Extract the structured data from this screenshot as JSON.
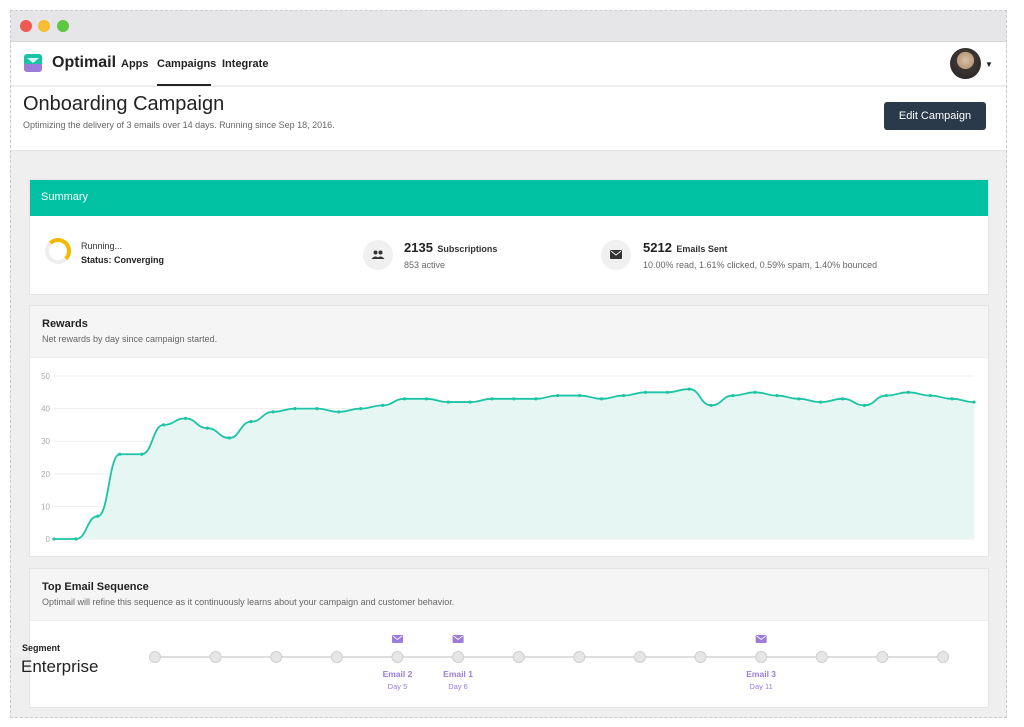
{
  "nav": {
    "brand": "Optimail",
    "links": [
      "Apps",
      "Campaigns",
      "Integrate"
    ],
    "active": "Campaigns"
  },
  "header": {
    "title": "Onboarding Campaign",
    "subtitle": "Optimizing the delivery of 3 emails over 14 days. Running since Sep 18, 2016.",
    "edit_label": "Edit Campaign"
  },
  "summary": {
    "title": "Summary",
    "running": "Running...",
    "status": "Status: Converging",
    "subscriptions_count": "2135",
    "subscriptions_label": "Subscriptions",
    "subscriptions_active": "853 active",
    "emails_count": "5212",
    "emails_label": "Emails Sent",
    "emails_stats": "10.00% read, 1.61% clicked, 0.59% spam, 1.40% bounced"
  },
  "rewards": {
    "title": "Rewards",
    "subtitle": "Net rewards by day since campaign started."
  },
  "chart_data": {
    "type": "area",
    "ylim": [
      0,
      50
    ],
    "yticks": [
      0,
      10,
      20,
      30,
      40,
      50
    ],
    "grid": true,
    "color": "#1cc4a6",
    "fill": "#e6f7f3",
    "values": [
      0,
      0,
      7,
      26,
      26,
      35,
      37,
      34,
      31,
      36,
      39,
      40,
      40,
      39,
      40,
      41,
      43,
      43,
      42,
      42,
      43,
      43,
      43,
      44,
      44,
      43,
      44,
      45,
      45,
      46,
      41,
      44,
      45,
      44,
      43,
      42,
      43,
      41,
      44,
      45,
      44,
      43,
      42
    ]
  },
  "sequence": {
    "title": "Top Email Sequence",
    "subtitle": "Optimail will refine this sequence as it continuously learns about your campaign and customer behavior.",
    "segment_label": "Segment",
    "segment_value": "Enterprise",
    "days": 14,
    "emails": [
      {
        "name": "Email 2",
        "day": 5,
        "day_label": "Day 5"
      },
      {
        "name": "Email 1",
        "day": 6,
        "day_label": "Day 6"
      },
      {
        "name": "Email 3",
        "day": 11,
        "day_label": "Day 11"
      }
    ],
    "accent": "#9b7cd9"
  }
}
